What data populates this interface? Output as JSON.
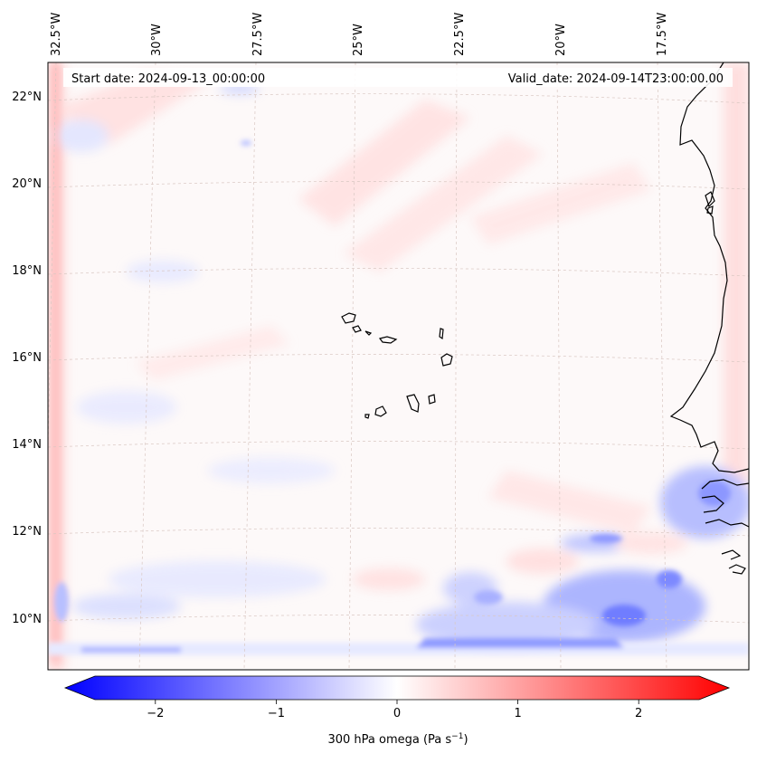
{
  "header": {
    "start_date": "Start date: 2024-09-13_00:00:00",
    "valid_date": "Valid_date: 2024-09-14T23:00:00.00"
  },
  "lon_labels": [
    "32.5°W",
    "30°W",
    "27.5°W",
    "25°W",
    "22.5°W",
    "20°W",
    "17.5°W"
  ],
  "lat_labels": [
    "22°N",
    "20°N",
    "18°N",
    "16°N",
    "14°N",
    "12°N",
    "10°N"
  ],
  "colorbar": {
    "ticks": [
      "−2",
      "−1",
      "0",
      "1",
      "2"
    ],
    "tick_values": [
      -2,
      -1,
      0,
      1,
      2
    ],
    "range": [
      -2.5,
      2.5
    ],
    "label_main": "300 hPa omega (Pa s",
    "label_exp": "−1",
    "label_end": ")",
    "colormap": "bwr",
    "colors": {
      "low": "#0000ff",
      "mid": "#ffffff",
      "high": "#ff0000"
    }
  },
  "map": {
    "field": "300 hPa omega",
    "coastline_color": "#000000",
    "gridline_color": "#d9c7c2"
  }
}
